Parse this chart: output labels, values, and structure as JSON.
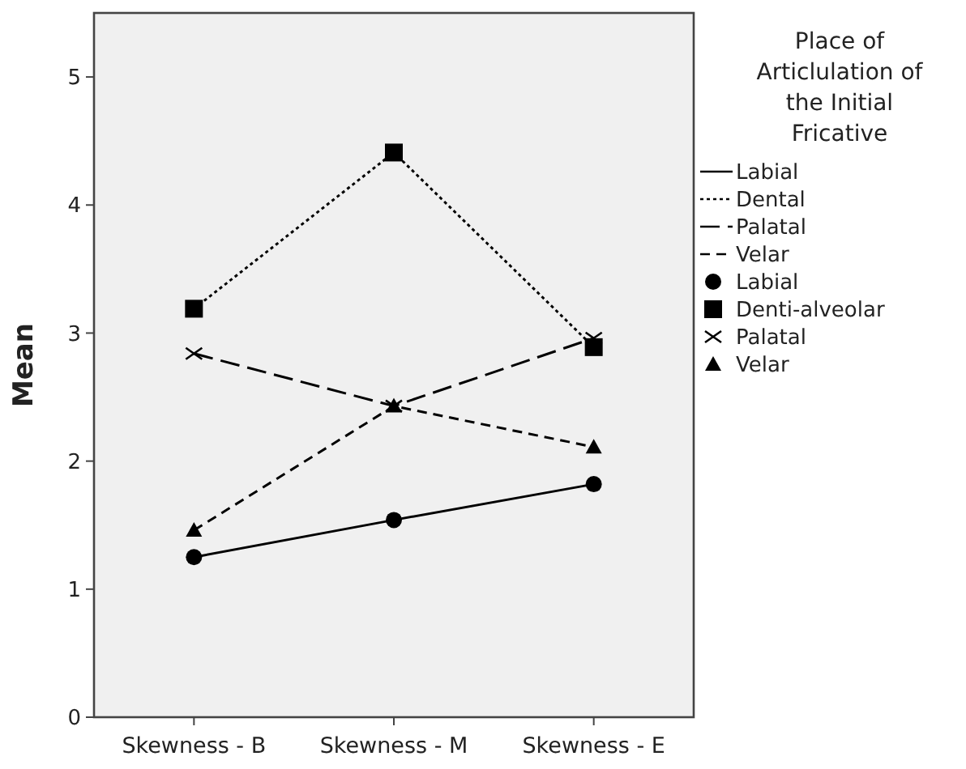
{
  "chart_data": {
    "type": "line",
    "ylabel": "Mean",
    "legend_title": "Place of Articlulation of the Initial Fricative",
    "legend": "right",
    "categories": [
      "Skewness - B",
      "Skewness - M",
      "Skewness - E"
    ],
    "ylim": [
      0,
      5.5
    ],
    "yticks": [
      0,
      1,
      2,
      3,
      4,
      5
    ],
    "grid": false,
    "series": [
      {
        "name": "Labial",
        "color": "#000000",
        "marker": "circle",
        "line_style": "solid",
        "values": [
          1.25,
          1.54,
          1.82
        ]
      },
      {
        "name": "Dental",
        "color": "#000000",
        "marker": "square",
        "line_style": "dotted",
        "values": [
          3.19,
          4.41,
          2.89
        ]
      },
      {
        "name": "Palatal",
        "color": "#000000",
        "marker": "cross",
        "line_style": "longdash",
        "values": [
          2.84,
          2.43,
          2.96
        ]
      },
      {
        "name": "Velar",
        "color": "#000000",
        "marker": "triangle",
        "line_style": "dashed",
        "values": [
          1.46,
          2.43,
          2.11
        ]
      }
    ],
    "annotations": [
      "Labial",
      "Denti-alveolar",
      "Palatal",
      "Velar"
    ]
  }
}
